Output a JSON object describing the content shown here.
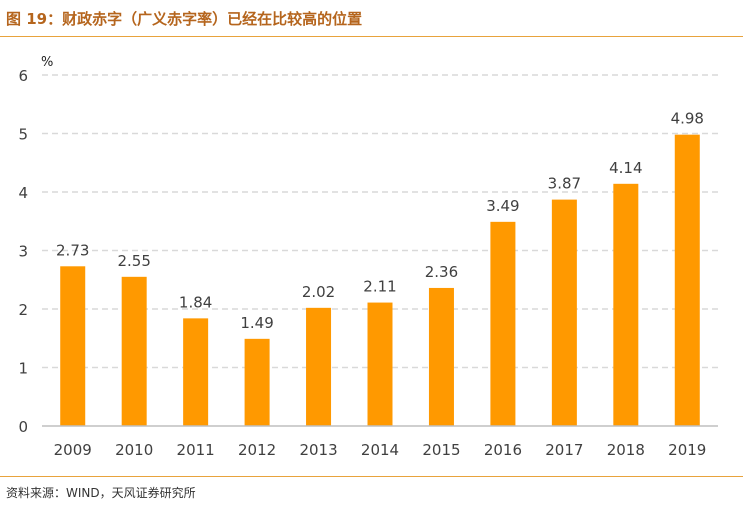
{
  "figure": {
    "title": "图 19：财政赤字（广义赤字率）已经在比较高的位置",
    "source": "资料来源：WIND，天风证券研究所"
  },
  "colors": {
    "bar": "#FF9900",
    "title": "#B5651D",
    "rule": "#E8A33D",
    "grid": "#D9D9D9",
    "axis_text": "#404040"
  },
  "chart_data": {
    "type": "bar",
    "categories": [
      "2009",
      "2010",
      "2011",
      "2012",
      "2013",
      "2014",
      "2015",
      "2016",
      "2017",
      "2018",
      "2019"
    ],
    "values": [
      2.73,
      2.55,
      1.84,
      1.49,
      2.02,
      2.11,
      2.36,
      3.49,
      3.87,
      4.14,
      4.98
    ],
    "data_labels": [
      "2.73",
      "2.55",
      "1.84",
      "1.49",
      "2.02",
      "2.11",
      "2.36",
      "3.49",
      "3.87",
      "4.14",
      "4.98"
    ],
    "y_ticks": [
      "0",
      "1",
      "2",
      "3",
      "4",
      "5",
      "6"
    ],
    "y_unit": "%",
    "ylim": [
      0,
      6
    ],
    "grid": true,
    "legend": "none"
  }
}
